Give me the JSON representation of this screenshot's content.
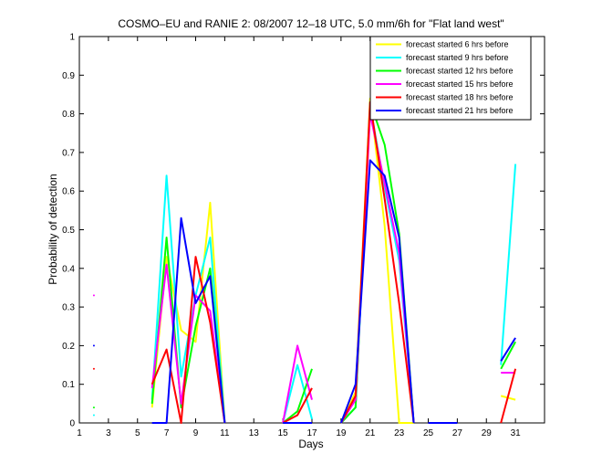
{
  "chart_data": {
    "type": "line",
    "title": "COSMO–EU and RANIE 2: 08/2007 12–18 UTC, 5.0 mm/6h for \"Flat land west\"",
    "xlabel": "Days",
    "ylabel": "Probability of detection",
    "xlim": [
      1,
      33
    ],
    "ylim": [
      0,
      1
    ],
    "xticks": [
      1,
      3,
      5,
      7,
      9,
      11,
      13,
      15,
      17,
      19,
      21,
      23,
      25,
      27,
      29,
      31
    ],
    "yticks": [
      0,
      0.1,
      0.2,
      0.3,
      0.4,
      0.5,
      0.6,
      0.7,
      0.8,
      0.9,
      1
    ],
    "ytick_labels": [
      "0",
      "0.1",
      "0.2",
      "0.3",
      "0.4",
      "0.5",
      "0.6",
      "0.7",
      "0.8",
      "0.9",
      "1"
    ],
    "legend_position": "top-right",
    "series": [
      {
        "name": "forecast started 6 hrs before",
        "color": "#ffff00",
        "segments": [
          [
            [
              6,
              0.04
            ],
            [
              7,
              0.43
            ],
            [
              8,
              0.24
            ],
            [
              9,
              0.21
            ],
            [
              10,
              0.57
            ],
            [
              11,
              0
            ]
          ],
          [
            [
              15,
              0
            ],
            [
              16,
              0
            ],
            [
              17,
              0
            ]
          ],
          [
            [
              19,
              0
            ],
            [
              20,
              0.08
            ],
            [
              21,
              0.84
            ],
            [
              22,
              0.51
            ],
            [
              23,
              0
            ],
            [
              24,
              0
            ]
          ],
          [
            [
              30,
              0.07
            ],
            [
              31,
              0.06
            ]
          ]
        ]
      },
      {
        "name": "forecast started 9 hrs before",
        "color": "#00ffff",
        "segments": [
          [
            [
              2,
              0.02
            ]
          ],
          [
            [
              6,
              0.06
            ],
            [
              7,
              0.64
            ],
            [
              8,
              0.12
            ],
            [
              9,
              0.33
            ],
            [
              10,
              0.48
            ],
            [
              11,
              0
            ]
          ],
          [
            [
              15,
              0
            ],
            [
              16,
              0.15
            ],
            [
              17,
              0.01
            ]
          ],
          [
            [
              19,
              0
            ],
            [
              20,
              0.04
            ],
            [
              21,
              0.82
            ],
            [
              22,
              0.61
            ],
            [
              23,
              0.42
            ],
            [
              24,
              0
            ]
          ],
          [
            [
              30,
              0.15
            ],
            [
              31,
              0.67
            ]
          ]
        ]
      },
      {
        "name": "forecast started 12 hrs before",
        "color": "#00ff00",
        "segments": [
          [
            [
              2,
              0.04
            ]
          ],
          [
            [
              6,
              0.05
            ],
            [
              7,
              0.48
            ],
            [
              8,
              0.04
            ],
            [
              9,
              0.25
            ],
            [
              10,
              0.4
            ],
            [
              11,
              0
            ]
          ],
          [
            [
              15,
              0
            ],
            [
              16,
              0.03
            ],
            [
              17,
              0.14
            ]
          ],
          [
            [
              19,
              0
            ],
            [
              20,
              0.04
            ],
            [
              21,
              0.83
            ],
            [
              22,
              0.72
            ],
            [
              23,
              0.49
            ],
            [
              24,
              0
            ]
          ],
          [
            [
              30,
              0.14
            ],
            [
              31,
              0.21
            ]
          ]
        ]
      },
      {
        "name": "forecast started 15 hrs before",
        "color": "#ff00ff",
        "segments": [
          [
            [
              2,
              0.33
            ]
          ],
          [
            [
              6,
              0.09
            ],
            [
              7,
              0.41
            ],
            [
              8,
              0.05
            ],
            [
              9,
              0.33
            ],
            [
              10,
              0.29
            ],
            [
              11,
              0
            ]
          ],
          [
            [
              15,
              0
            ],
            [
              16,
              0.2
            ],
            [
              17,
              0.06
            ]
          ],
          [
            [
              19,
              0
            ],
            [
              20,
              0.06
            ],
            [
              21,
              0.8
            ],
            [
              22,
              0.62
            ],
            [
              23,
              0.44
            ],
            [
              24,
              0
            ]
          ],
          [
            [
              30,
              0.13
            ],
            [
              31,
              0.13
            ]
          ]
        ]
      },
      {
        "name": "forecast started 18 hrs before",
        "color": "#ff0000",
        "segments": [
          [
            [
              2,
              0.14
            ]
          ],
          [
            [
              6,
              0.1
            ],
            [
              7,
              0.19
            ],
            [
              8,
              0
            ],
            [
              9,
              0.43
            ],
            [
              10,
              0.26
            ],
            [
              11,
              0
            ]
          ],
          [
            [
              15,
              0
            ],
            [
              16,
              0.02
            ],
            [
              17,
              0.09
            ]
          ],
          [
            [
              19,
              0
            ],
            [
              20,
              0.07
            ],
            [
              21,
              0.83
            ],
            [
              22,
              0.58
            ],
            [
              23,
              0.31
            ],
            [
              24,
              0
            ]
          ],
          [
            [
              30,
              0
            ],
            [
              31,
              0.14
            ]
          ]
        ]
      },
      {
        "name": "forecast started 21 hrs before",
        "color": "#0000ff",
        "segments": [
          [
            [
              2,
              0.2
            ]
          ],
          [
            [
              6,
              0
            ],
            [
              7,
              0
            ],
            [
              8,
              0.53
            ],
            [
              9,
              0.31
            ],
            [
              10,
              0.38
            ],
            [
              11,
              0
            ]
          ],
          [
            [
              15,
              0
            ],
            [
              16,
              0
            ],
            [
              17,
              0
            ]
          ],
          [
            [
              19,
              0
            ],
            [
              20,
              0.1
            ],
            [
              21,
              0.68
            ],
            [
              22,
              0.64
            ],
            [
              23,
              0.48
            ],
            [
              24,
              0
            ]
          ],
          [
            [
              25,
              0
            ],
            [
              26,
              0
            ],
            [
              27,
              0
            ]
          ],
          [
            [
              30,
              0.16
            ],
            [
              31,
              0.22
            ]
          ]
        ]
      }
    ]
  }
}
